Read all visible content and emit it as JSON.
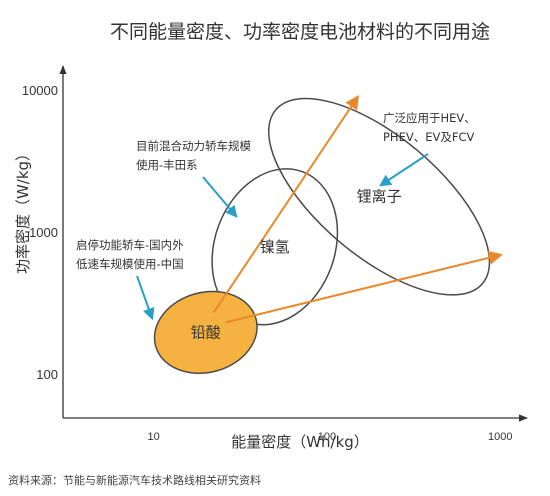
{
  "chart_data": {
    "type": "scatter",
    "title": "不同能量密度、功率密度电池材料的不同用途",
    "xlabel": "能量密度（Wh/kg）",
    "ylabel": "功率密度（W/kg）",
    "x_scale": "log",
    "y_scale": "log",
    "xlim": [
      3,
      1300
    ],
    "ylim": [
      50,
      14000
    ],
    "x_ticks": [
      10,
      100,
      1000
    ],
    "y_ticks": [
      100,
      1000,
      10000
    ],
    "x_tick_labels": [
      "10",
      "100",
      "1000"
    ],
    "y_tick_labels": [
      "100",
      "1000",
      "10000"
    ],
    "grid": false,
    "regions": [
      {
        "name": "铅酸",
        "center": [
          20,
          200
        ],
        "fill": "#f5b240",
        "edge": "#4a4a4a"
      },
      {
        "name": "镍氢",
        "center": [
          50,
          800
        ],
        "fill": "none",
        "edge": "#4a4a4a"
      },
      {
        "name": "锂离子",
        "center": [
          200,
          1800
        ],
        "fill": "none",
        "edge": "#4a4a4a"
      }
    ],
    "arrows": [
      {
        "from": [
          20,
          200
        ],
        "to": [
          150,
          9000
        ],
        "color": "#e98a2a"
      },
      {
        "from": [
          20,
          200
        ],
        "to": [
          1000,
          700
        ],
        "color": "#e98a2a"
      }
    ],
    "annotations": [
      {
        "lines": [
          "启停功能轿车-国内外",
          "低速车规模使用-中国"
        ],
        "points_to": "铅酸"
      },
      {
        "lines": [
          "目前混合动力轿车规模",
          "使用-丰田系"
        ],
        "points_to": "镍氢"
      },
      {
        "lines": [
          "广泛应用于HEV、",
          "PHEV、EV及FCV"
        ],
        "points_to": "锂离子"
      }
    ],
    "annotation_arrow_color": "#2a9fc7",
    "axis_color": "#333333"
  },
  "source": "资料来源：节能与新能源汽车技术路线相关研究资料"
}
